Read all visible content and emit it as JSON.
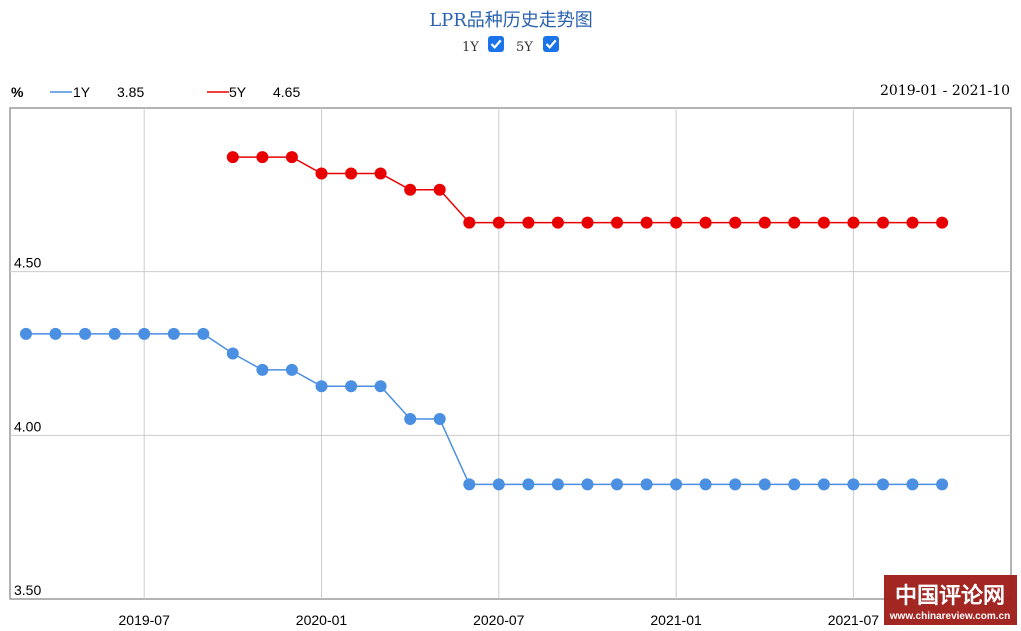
{
  "chart_data": {
    "type": "line",
    "title": "LPR品种历史走势图",
    "unit_label": "%",
    "date_range": "2019-01 - 2021-10",
    "toggles": [
      {
        "label": "1Y",
        "checked": true
      },
      {
        "label": "5Y",
        "checked": true
      }
    ],
    "x": [
      "2019-03",
      "2019-04",
      "2019-05",
      "2019-06",
      "2019-07",
      "2019-08",
      "2019-09",
      "2019-10",
      "2019-11",
      "2019-12",
      "2020-01",
      "2020-02",
      "2020-03",
      "2020-04",
      "2020-05",
      "2020-06",
      "2020-07",
      "2020-08",
      "2020-09",
      "2020-10",
      "2020-11",
      "2020-12",
      "2021-01",
      "2021-02",
      "2021-03",
      "2021-04",
      "2021-05",
      "2021-06",
      "2021-07",
      "2021-08",
      "2021-09",
      "2021-10"
    ],
    "x_ticks": [
      "2019-07",
      "2020-01",
      "2020-07",
      "2021-01",
      "2021-07"
    ],
    "y_ticks": [
      "4.50",
      "4.00",
      "3.50"
    ],
    "ylim": [
      3.5,
      5.0
    ],
    "grid": true,
    "series": [
      {
        "name": "1Y",
        "latest": "3.85",
        "color": "#4a8fe2",
        "values": [
          4.31,
          4.31,
          4.31,
          4.31,
          4.31,
          4.31,
          4.31,
          4.25,
          4.2,
          4.2,
          4.15,
          4.15,
          4.15,
          4.05,
          4.05,
          3.85,
          3.85,
          3.85,
          3.85,
          3.85,
          3.85,
          3.85,
          3.85,
          3.85,
          3.85,
          3.85,
          3.85,
          3.85,
          3.85,
          3.85,
          3.85,
          3.85
        ]
      },
      {
        "name": "5Y",
        "latest": "4.65",
        "color": "#e80000",
        "values": [
          null,
          null,
          null,
          null,
          null,
          null,
          null,
          4.85,
          4.85,
          4.85,
          4.8,
          4.8,
          4.8,
          4.75,
          4.75,
          4.65,
          4.65,
          4.65,
          4.65,
          4.65,
          4.65,
          4.65,
          4.65,
          4.65,
          4.65,
          4.65,
          4.65,
          4.65,
          4.65,
          4.65,
          4.65,
          4.65
        ]
      }
    ]
  },
  "watermark": {
    "text_cn": "中国评论网",
    "text_url": "www.chinareview.com.cn"
  }
}
